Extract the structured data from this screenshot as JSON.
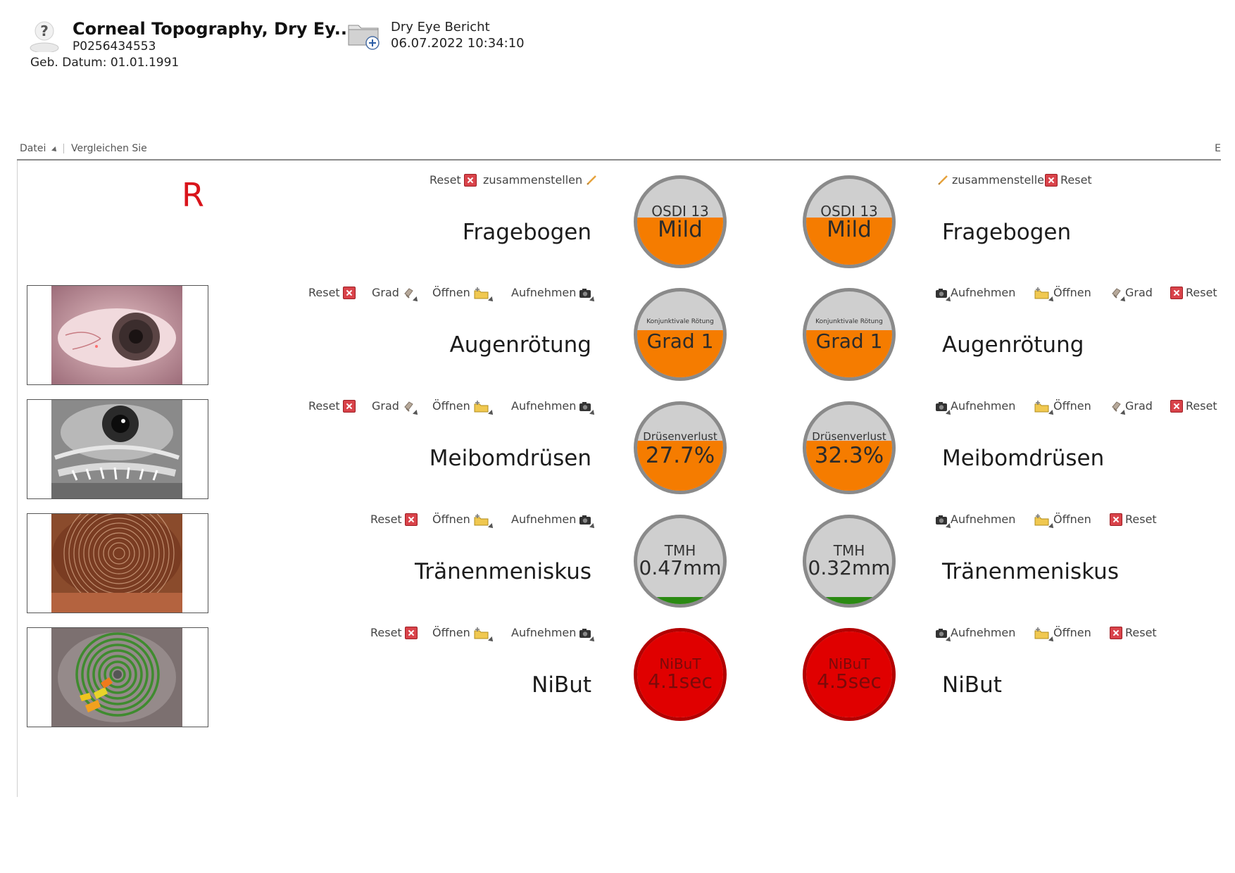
{
  "header": {
    "patient_name": "Corneal Topography, Dry Ey...",
    "patient_id": "P0256434553",
    "birth_date": "Geb. Datum: 01.01.1991",
    "report_title": "Dry Eye Bericht",
    "report_datetime": "06.07.2022 10:34:10",
    "avatar_icon": "unknown-patient-icon",
    "folder_icon": "add-folder-icon"
  },
  "toolbar": {
    "file_label": "Datei",
    "compare_label": "Vergleichen Sie",
    "right_label": "E"
  },
  "eye_side": "R",
  "colors": {
    "gauge_gray": "#cfcfcf",
    "mild_orange": "#f57c00",
    "ok_green": "#2a8a12",
    "alert_red": "#e00000",
    "reset_red": "#d9434a",
    "eye_marker_red": "#d9141b"
  },
  "rows": [
    {
      "key": "questionnaire",
      "label": "Fragebogen",
      "left_actions": [
        "Reset",
        "zusammenstellen"
      ],
      "right_actions": [
        "zusammenstellen",
        "Reset"
      ],
      "left_gauge": {
        "label": "OSDI 13",
        "value": "Mild",
        "level_color": "#f57c00",
        "level": 0.55
      },
      "right_gauge": {
        "label": "OSDI 13",
        "value": "Mild",
        "level_color": "#f57c00",
        "level": 0.55
      }
    },
    {
      "key": "redness",
      "label": "Augenrötung",
      "left_actions": [
        "Reset",
        "Grad",
        "Öffnen",
        "Aufnehmen"
      ],
      "right_actions": [
        "Aufnehmen",
        "Öffnen",
        "Grad",
        "Reset"
      ],
      "left_gauge": {
        "label": "Konjunktivale Rötung",
        "value": "Grad 1",
        "level_color": "#f57c00",
        "level": 0.55
      },
      "right_gauge": {
        "label": "Konjunktivale Rötung",
        "value": "Grad 1",
        "level_color": "#f57c00",
        "level": 0.55
      }
    },
    {
      "key": "meibomian",
      "label": "Meibomdrüsen",
      "left_actions": [
        "Reset",
        "Grad",
        "Öffnen",
        "Aufnehmen"
      ],
      "right_actions": [
        "Aufnehmen",
        "Öffnen",
        "Grad",
        "Reset"
      ],
      "left_gauge": {
        "label": "Drüsenverlust",
        "value": "27.7%",
        "level_color": "#f57c00",
        "level": 0.58
      },
      "right_gauge": {
        "label": "Drüsenverlust",
        "value": "32.3%",
        "level_color": "#f57c00",
        "level": 0.58
      }
    },
    {
      "key": "tear_meniscus",
      "label": "Tränenmeniskus",
      "left_actions": [
        "Reset",
        "Öffnen",
        "Aufnehmen"
      ],
      "right_actions": [
        "Aufnehmen",
        "Öffnen",
        "Reset"
      ],
      "left_gauge": {
        "label": "TMH",
        "value": "0.47mm",
        "level_color": "#2a8a12",
        "level": 0.08
      },
      "right_gauge": {
        "label": "TMH",
        "value": "0.32mm",
        "level_color": "#2a8a12",
        "level": 0.08
      }
    },
    {
      "key": "nibut",
      "label": "NiBut",
      "left_actions": [
        "Reset",
        "Öffnen",
        "Aufnehmen"
      ],
      "right_actions": [
        "Aufnehmen",
        "Öffnen",
        "Reset"
      ],
      "left_gauge": {
        "label": "NiBuT",
        "value": "4.1sec",
        "level_color": "#e00000",
        "level": 1.0
      },
      "right_gauge": {
        "label": "NiBuT",
        "value": "4.5sec",
        "level_color": "#e00000",
        "level": 1.0
      }
    }
  ],
  "thumbnails": [
    {
      "name": "redness-thumbnail",
      "kind": "color-eye"
    },
    {
      "name": "meibography-thumbnail",
      "kind": "infrared-lid"
    },
    {
      "name": "tear-meniscus-thumbnail",
      "kind": "placido-rings"
    },
    {
      "name": "nibut-thumbnail",
      "kind": "tearfilm-map"
    }
  ]
}
